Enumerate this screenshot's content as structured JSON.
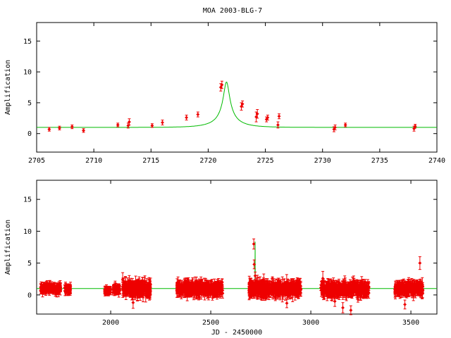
{
  "title": "MOA 2003-BLG-7",
  "colors": {
    "model": "#00bb00",
    "data": "#ee0000",
    "axis": "#000000",
    "background": "#ffffff"
  },
  "chart_data": [
    {
      "type": "scatter",
      "panel": "top",
      "title": "MOA 2003-BLG-7",
      "xlabel": "",
      "ylabel": "Amplification",
      "xlim": [
        2705,
        2740
      ],
      "ylim": [
        -3,
        18
      ],
      "x_ticks": [
        2705,
        2710,
        2715,
        2720,
        2725,
        2730,
        2735,
        2740
      ],
      "y_ticks": [
        0,
        5,
        10,
        15
      ],
      "grid": false,
      "model": {
        "name": "",
        "type": "line",
        "t0": 2721.6,
        "u0": 0.12,
        "tE": 2.3
      },
      "points": [
        {
          "x": 2706.1,
          "y": 0.7,
          "err": 0.3
        },
        {
          "x": 2707.0,
          "y": 0.9,
          "err": 0.3
        },
        {
          "x": 2708.1,
          "y": 1.1,
          "err": 0.3
        },
        {
          "x": 2709.1,
          "y": 0.5,
          "err": 0.3
        },
        {
          "x": 2712.1,
          "y": 1.4,
          "err": 0.3
        },
        {
          "x": 2713.0,
          "y": 1.3,
          "err": 0.4
        },
        {
          "x": 2713.1,
          "y": 1.9,
          "err": 0.5
        },
        {
          "x": 2715.1,
          "y": 1.3,
          "err": 0.3
        },
        {
          "x": 2716.0,
          "y": 1.8,
          "err": 0.4
        },
        {
          "x": 2718.1,
          "y": 2.6,
          "err": 0.4
        },
        {
          "x": 2719.1,
          "y": 3.1,
          "err": 0.4
        },
        {
          "x": 2721.1,
          "y": 7.5,
          "err": 0.6
        },
        {
          "x": 2721.2,
          "y": 7.9,
          "err": 0.6
        },
        {
          "x": 2722.9,
          "y": 4.4,
          "err": 0.6
        },
        {
          "x": 2723.0,
          "y": 4.8,
          "err": 0.5
        },
        {
          "x": 2724.2,
          "y": 2.7,
          "err": 0.8
        },
        {
          "x": 2724.3,
          "y": 3.2,
          "err": 0.7
        },
        {
          "x": 2725.1,
          "y": 2.3,
          "err": 0.4
        },
        {
          "x": 2725.2,
          "y": 2.6,
          "err": 0.4
        },
        {
          "x": 2726.1,
          "y": 1.4,
          "err": 0.5
        },
        {
          "x": 2726.2,
          "y": 2.8,
          "err": 0.4
        },
        {
          "x": 2731.0,
          "y": 0.7,
          "err": 0.4
        },
        {
          "x": 2731.1,
          "y": 1.0,
          "err": 0.4
        },
        {
          "x": 2732.0,
          "y": 1.4,
          "err": 0.3
        },
        {
          "x": 2738.0,
          "y": 0.8,
          "err": 0.4
        },
        {
          "x": 2738.1,
          "y": 1.2,
          "err": 0.3
        }
      ]
    },
    {
      "type": "scatter",
      "panel": "bottom",
      "title": "",
      "xlabel": "JD - 2450000",
      "ylabel": "Amplification",
      "xlim": [
        1630,
        3630
      ],
      "ylim": [
        -3,
        18
      ],
      "x_ticks": [
        2000,
        2500,
        3000,
        3500
      ],
      "y_ticks": [
        0,
        5,
        10,
        15
      ],
      "grid": false,
      "model": {
        "name": "",
        "type": "line",
        "t0": 2721.6,
        "u0": 0.12,
        "tE": 2.3
      },
      "season_clusters": [
        {
          "x_range": [
            1650,
            1750
          ],
          "y_mean": 1.0,
          "y_spread": 0.6,
          "err": 0.5
        },
        {
          "x_range": [
            1770,
            1800
          ],
          "y_mean": 0.9,
          "y_spread": 0.5,
          "err": 0.5
        },
        {
          "x_range": [
            1970,
            2000
          ],
          "y_mean": 0.7,
          "y_spread": 0.4,
          "err": 0.4
        },
        {
          "x_range": [
            2010,
            2045
          ],
          "y_mean": 0.9,
          "y_spread": 0.5,
          "err": 0.5
        },
        {
          "x_range": [
            2060,
            2200
          ],
          "y_mean": 1.0,
          "y_spread": 0.9,
          "err": 0.8
        },
        {
          "x_range": [
            2330,
            2560
          ],
          "y_mean": 1.0,
          "y_spread": 0.8,
          "err": 0.7
        },
        {
          "x_range": [
            2690,
            2950
          ],
          "y_mean": 1.0,
          "y_spread": 0.9,
          "err": 0.8
        },
        {
          "x_range": [
            3050,
            3290
          ],
          "y_mean": 0.9,
          "y_spread": 0.9,
          "err": 0.7
        },
        {
          "x_range": [
            3420,
            3560
          ],
          "y_mean": 1.0,
          "y_spread": 0.8,
          "err": 0.7
        }
      ],
      "outliers": [
        {
          "x": 2715,
          "y": 8.0,
          "err": 0.8
        },
        {
          "x": 2717,
          "y": 4.8,
          "err": 0.7
        },
        {
          "x": 2722,
          "y": 3.0,
          "err": 0.6
        },
        {
          "x": 2112,
          "y": -1.2,
          "err": 0.9
        },
        {
          "x": 2060,
          "y": 2.4,
          "err": 1.1
        },
        {
          "x": 3160,
          "y": -2.0,
          "err": 0.8
        },
        {
          "x": 3200,
          "y": -2.4,
          "err": 0.7
        },
        {
          "x": 3120,
          "y": -1.0,
          "err": 0.8
        },
        {
          "x": 3060,
          "y": 2.6,
          "err": 1.1
        },
        {
          "x": 2880,
          "y": -1.3,
          "err": 0.7
        },
        {
          "x": 3545,
          "y": 5.0,
          "err": 1.0
        },
        {
          "x": 3470,
          "y": -1.5,
          "err": 0.7
        }
      ]
    }
  ]
}
